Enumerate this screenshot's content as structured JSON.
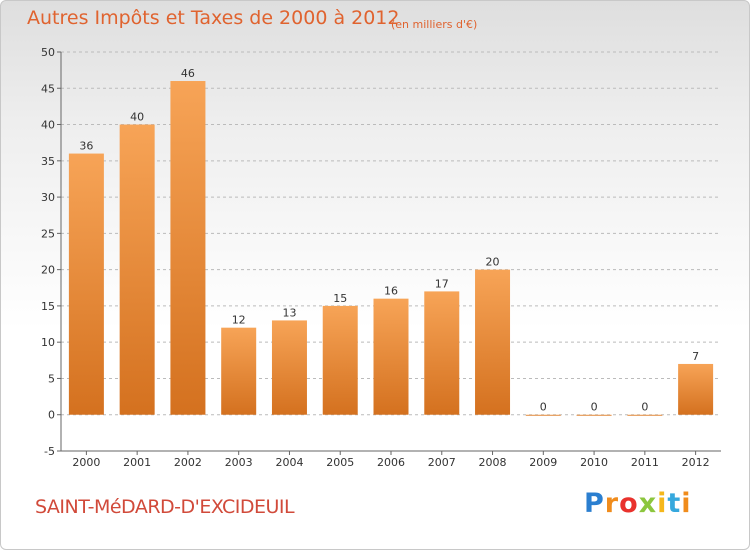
{
  "header": {
    "title": "Autres Impôts et Taxes de 2000 à 2012",
    "units": "(en milliers d'€)"
  },
  "footer": {
    "commune": "SAINT-MéDARD-D'EXCIDEUIL",
    "logo_letters": [
      "P",
      "r",
      "o",
      "x",
      "i",
      "t",
      "i"
    ]
  },
  "colors": {
    "bar_light": "#f7a457",
    "bar_dark": "#d4711f",
    "title": "#e0632f",
    "grid": "#bbbbbb"
  },
  "chart_data": {
    "type": "bar",
    "title": "Autres Impôts et Taxes de 2000 à 2012",
    "subtitle": "(en milliers d'€)",
    "xlabel": "",
    "ylabel": "",
    "categories": [
      "2000",
      "2001",
      "2002",
      "2003",
      "2004",
      "2005",
      "2006",
      "2007",
      "2008",
      "2009",
      "2010",
      "2011",
      "2012"
    ],
    "values": [
      36,
      40,
      46,
      12,
      13,
      15,
      16,
      17,
      20,
      0,
      0,
      0,
      7
    ],
    "data_labels": [
      "36",
      "40",
      "46",
      "12",
      "13",
      "15",
      "16",
      "17",
      "20",
      "0",
      "0",
      "0",
      "7"
    ],
    "ylim": [
      -5,
      50
    ],
    "yticks": [
      -5,
      0,
      5,
      10,
      15,
      20,
      25,
      30,
      35,
      40,
      45,
      50
    ],
    "grid": "horizontal dashed",
    "legend": "none"
  }
}
